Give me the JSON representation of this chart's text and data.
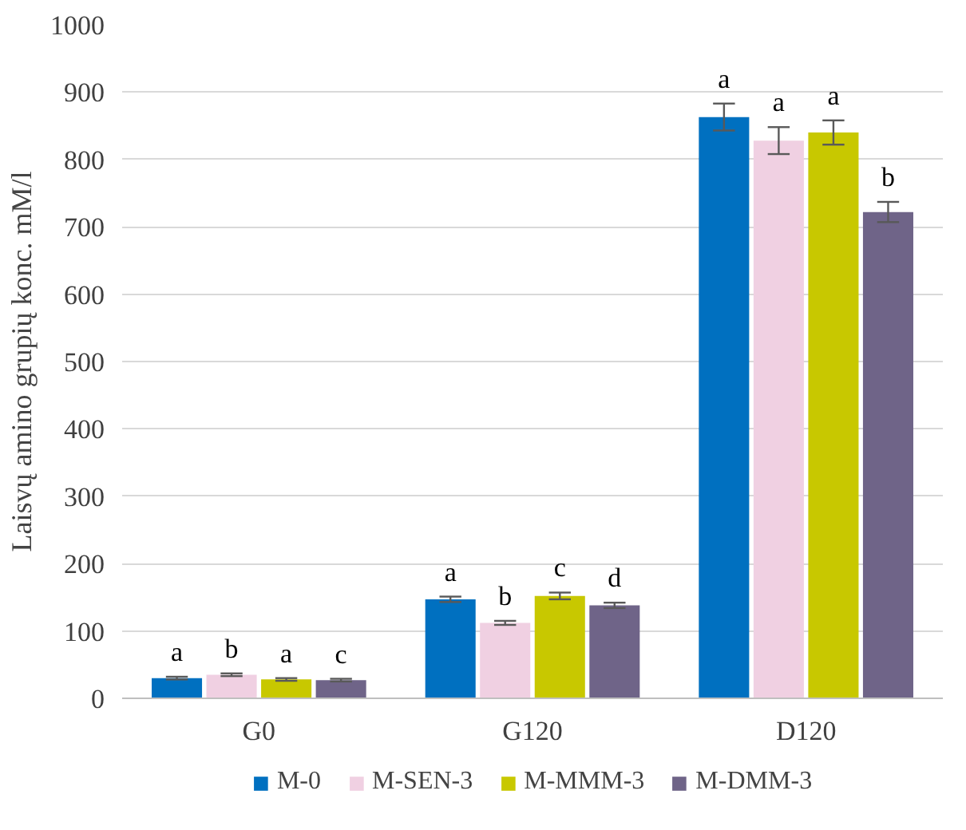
{
  "chart_data": {
    "type": "bar",
    "ylabel": "Laisvų amino grupių konc. mM/l",
    "categories": [
      "G0",
      "G120",
      "D120"
    ],
    "ylim": [
      0,
      1000
    ],
    "yticks": [
      0,
      100,
      200,
      300,
      400,
      500,
      600,
      700,
      800,
      900,
      1000
    ],
    "grid": "y",
    "legend": "bottom",
    "series": [
      {
        "name": "M-0",
        "color": "#0070c0",
        "values": [
          30,
          147,
          863
        ],
        "errors": [
          2,
          4,
          20
        ],
        "value_labels": [
          "a",
          "a",
          "a"
        ]
      },
      {
        "name": "M-SEN-3",
        "color": "#f0d0e2",
        "values": [
          35,
          112,
          828
        ],
        "errors": [
          2,
          3,
          20
        ],
        "value_labels": [
          "b",
          "b",
          "a"
        ]
      },
      {
        "name": "M-MMM-3",
        "color": "#c8c800",
        "values": [
          28,
          152,
          840
        ],
        "errors": [
          2,
          5,
          18
        ],
        "value_labels": [
          "a",
          "c",
          "a"
        ]
      },
      {
        "name": "M-DMM-3",
        "color": "#6f6488",
        "values": [
          27,
          138,
          722
        ],
        "errors": [
          2,
          4,
          15
        ],
        "value_labels": [
          "c",
          "d",
          "b"
        ]
      }
    ]
  }
}
